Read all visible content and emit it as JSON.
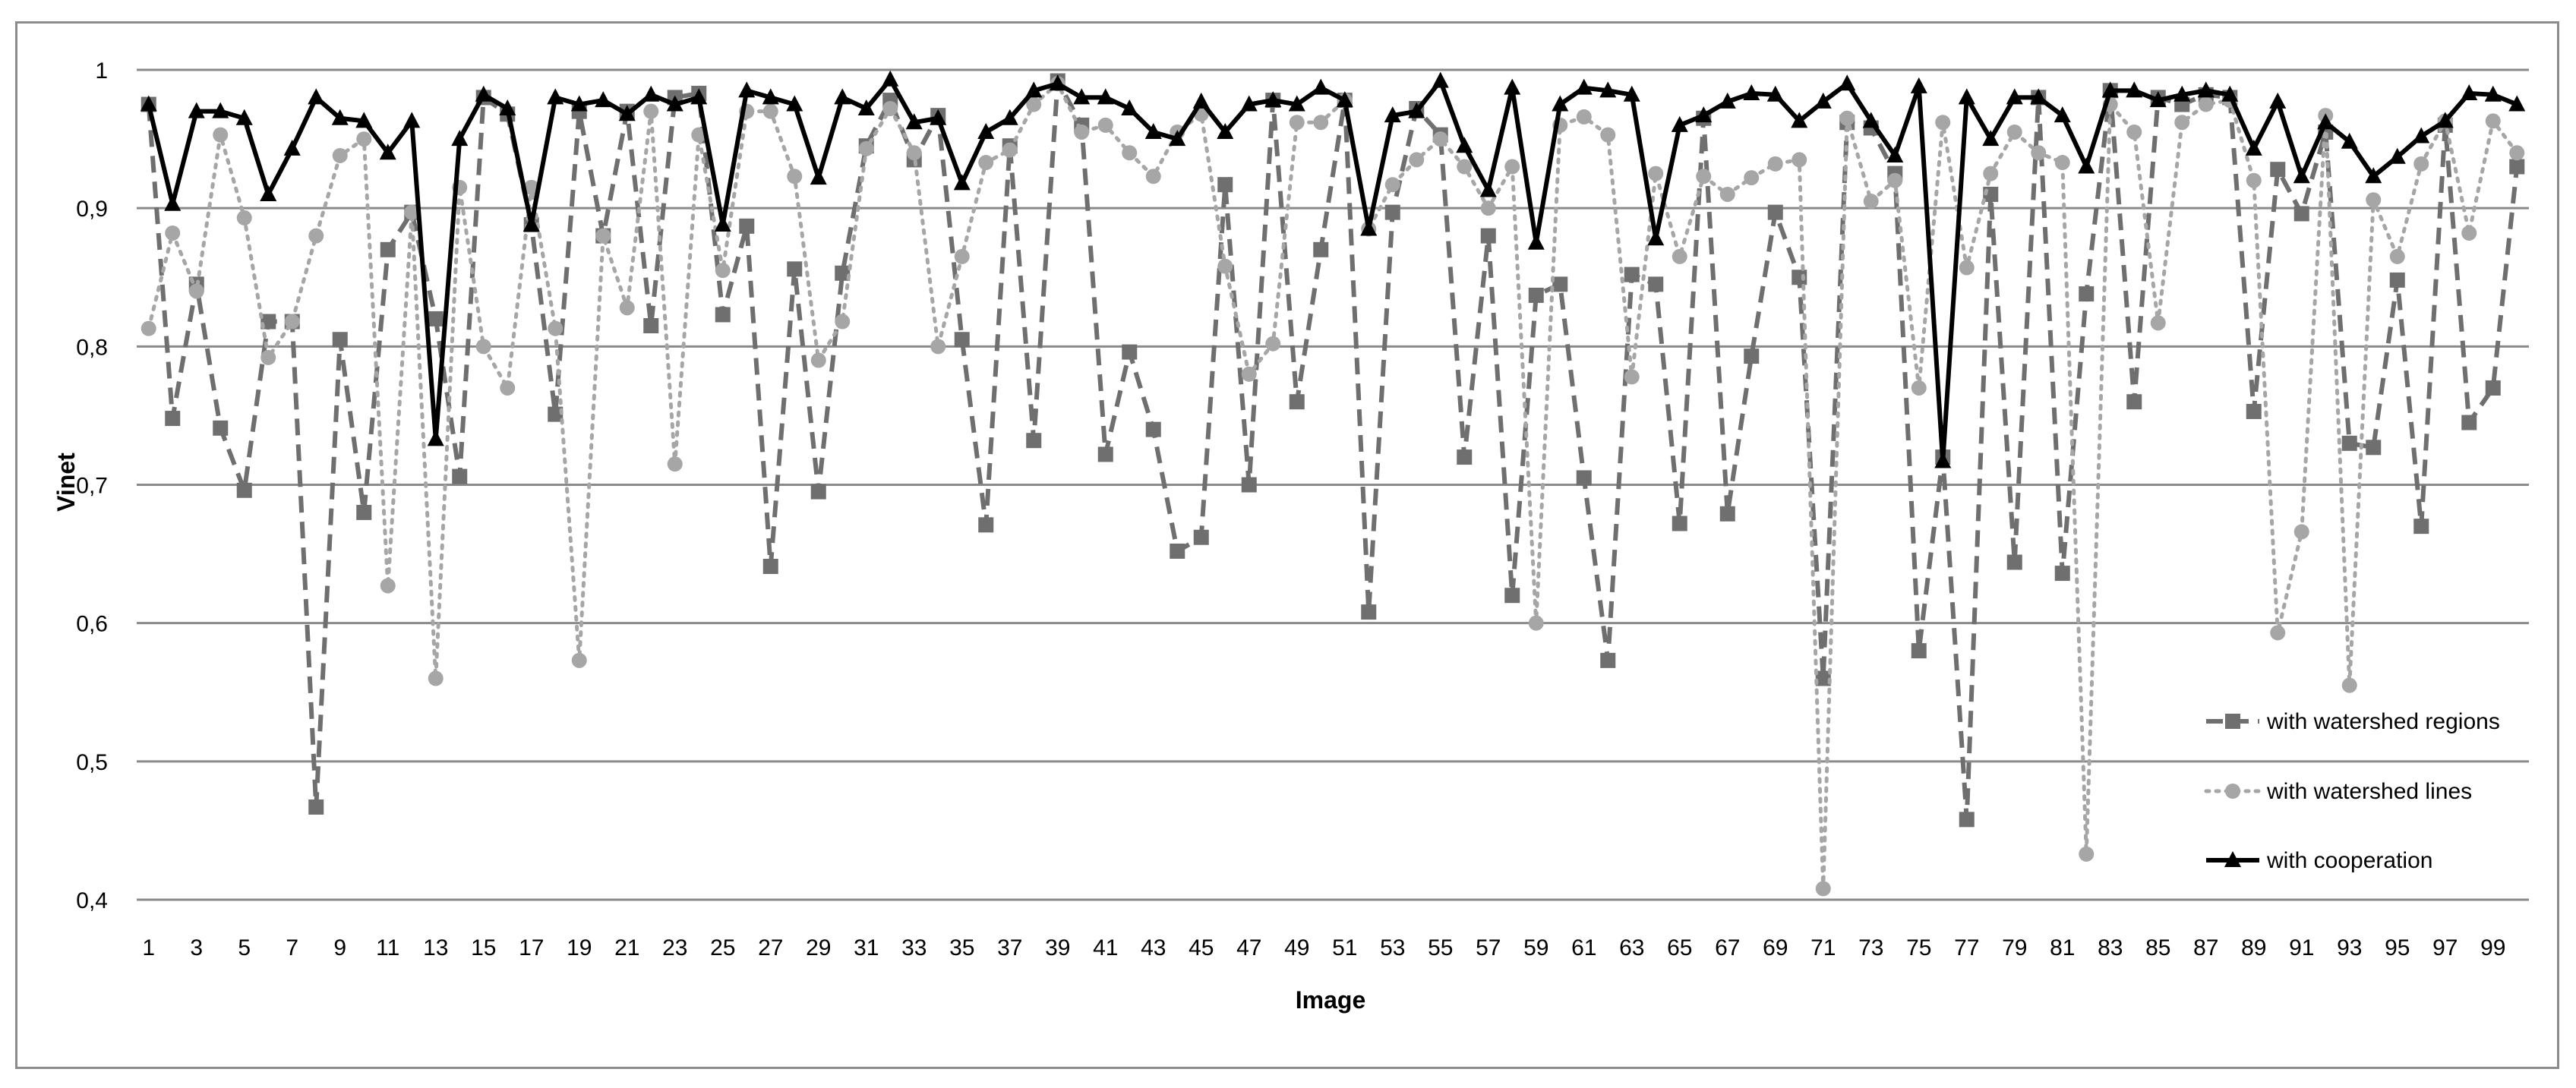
{
  "chart_data": {
    "type": "line",
    "title": "",
    "xlabel": "Image",
    "ylabel": "Vinet",
    "ylim": [
      0.4,
      1.0
    ],
    "xlim": [
      1,
      100
    ],
    "yticks": [
      0.4,
      0.5,
      0.6,
      0.7,
      0.8,
      0.9,
      1.0
    ],
    "ytick_labels": [
      "0,4",
      "0,5",
      "0,6",
      "0,7",
      "0,8",
      "0,9",
      "1"
    ],
    "xticks": [
      1,
      3,
      5,
      7,
      9,
      11,
      13,
      15,
      17,
      19,
      21,
      23,
      25,
      27,
      29,
      31,
      33,
      35,
      37,
      39,
      41,
      43,
      45,
      47,
      49,
      51,
      53,
      55,
      57,
      59,
      61,
      63,
      65,
      67,
      69,
      71,
      73,
      75,
      77,
      79,
      81,
      83,
      85,
      87,
      89,
      91,
      93,
      95,
      97,
      99
    ],
    "xtick_labels": [
      "1",
      "3",
      "5",
      "7",
      "9",
      "11",
      "13",
      "15",
      "17",
      "19",
      "21",
      "23",
      "25",
      "27",
      "29",
      "31",
      "33",
      "35",
      "37",
      "39",
      "41",
      "43",
      "45",
      "47",
      "49",
      "51",
      "53",
      "55",
      "57",
      "59",
      "61",
      "63",
      "65",
      "67",
      "69",
      "71",
      "73",
      "75",
      "77",
      "79",
      "81",
      "83",
      "85",
      "87",
      "89",
      "91",
      "93",
      "95",
      "97",
      "99"
    ],
    "grid": "horizontal",
    "legend_position": "bottom-right",
    "x": [
      1,
      2,
      3,
      4,
      5,
      6,
      7,
      8,
      9,
      10,
      11,
      12,
      13,
      14,
      15,
      16,
      17,
      18,
      19,
      20,
      21,
      22,
      23,
      24,
      25,
      26,
      27,
      28,
      29,
      30,
      31,
      32,
      33,
      34,
      35,
      36,
      37,
      38,
      39,
      40,
      41,
      42,
      43,
      44,
      45,
      46,
      47,
      48,
      49,
      50,
      51,
      52,
      53,
      54,
      55,
      56,
      57,
      58,
      59,
      60,
      61,
      62,
      63,
      64,
      65,
      66,
      67,
      68,
      69,
      70,
      71,
      72,
      73,
      74,
      75,
      76,
      77,
      78,
      79,
      80,
      81,
      82,
      83,
      84,
      85,
      86,
      87,
      88,
      89,
      90,
      91,
      92,
      93,
      94,
      95,
      96,
      97,
      98,
      99,
      100
    ],
    "series": [
      {
        "name": "with watershed regions",
        "style": "dashed-square",
        "color": "#6f6f6f",
        "values": [
          0.975,
          0.748,
          0.845,
          0.741,
          0.696,
          0.818,
          0.818,
          0.467,
          0.805,
          0.68,
          0.87,
          0.897,
          0.82,
          0.706,
          0.98,
          0.968,
          0.888,
          0.751,
          0.97,
          0.88,
          0.97,
          0.815,
          0.98,
          0.983,
          0.823,
          0.887,
          0.641,
          0.856,
          0.695,
          0.853,
          0.945,
          0.978,
          0.935,
          0.967,
          0.805,
          0.671,
          0.945,
          0.732,
          0.992,
          0.96,
          0.722,
          0.796,
          0.74,
          0.652,
          0.662,
          0.917,
          0.7,
          0.978,
          0.76,
          0.87,
          0.978,
          0.608,
          0.897,
          0.972,
          0.953,
          0.72,
          0.88,
          0.62,
          0.837,
          0.845,
          0.705,
          0.573,
          0.852,
          0.845,
          0.672,
          0.965,
          0.679,
          0.793,
          0.897,
          0.85,
          0.56,
          0.962,
          0.958,
          0.925,
          0.58,
          0.72,
          0.458,
          0.91,
          0.644,
          0.98,
          0.636,
          0.838,
          0.985,
          0.76,
          0.98,
          0.975,
          0.982,
          0.98,
          0.753,
          0.928,
          0.896,
          0.955,
          0.73,
          0.727,
          0.848,
          0.67,
          0.96,
          0.745,
          0.77,
          0.93
        ]
      },
      {
        "name": "with watershed lines",
        "style": "dotted-circle",
        "color": "#a6a6a6",
        "values": [
          0.813,
          0.882,
          0.84,
          0.953,
          0.893,
          0.792,
          0.818,
          0.88,
          0.938,
          0.95,
          0.627,
          0.897,
          0.56,
          0.915,
          0.8,
          0.77,
          0.915,
          0.813,
          0.573,
          0.88,
          0.828,
          0.97,
          0.715,
          0.953,
          0.855,
          0.97,
          0.97,
          0.923,
          0.79,
          0.818,
          0.943,
          0.972,
          0.94,
          0.8,
          0.865,
          0.933,
          0.942,
          0.975,
          0.99,
          0.955,
          0.96,
          0.94,
          0.923,
          0.955,
          0.968,
          0.858,
          0.78,
          0.802,
          0.962,
          0.962,
          0.978,
          0.885,
          0.917,
          0.935,
          0.95,
          0.93,
          0.9,
          0.93,
          0.6,
          0.96,
          0.966,
          0.953,
          0.778,
          0.925,
          0.865,
          0.923,
          0.91,
          0.922,
          0.932,
          0.935,
          0.408,
          0.965,
          0.905,
          0.92,
          0.77,
          0.962,
          0.857,
          0.925,
          0.955,
          0.94,
          0.933,
          0.433,
          0.975,
          0.955,
          0.817,
          0.962,
          0.975,
          0.978,
          0.92,
          0.593,
          0.666,
          0.967,
          0.555,
          0.906,
          0.865,
          0.932,
          0.963,
          0.882,
          0.963,
          0.94
        ]
      },
      {
        "name": "with cooperation",
        "style": "solid-triangle",
        "color": "#000000",
        "values": [
          0.975,
          0.903,
          0.97,
          0.97,
          0.965,
          0.91,
          0.943,
          0.98,
          0.965,
          0.963,
          0.94,
          0.963,
          0.733,
          0.95,
          0.982,
          0.972,
          0.888,
          0.98,
          0.975,
          0.978,
          0.968,
          0.982,
          0.975,
          0.98,
          0.888,
          0.985,
          0.98,
          0.975,
          0.922,
          0.98,
          0.972,
          0.993,
          0.962,
          0.965,
          0.918,
          0.955,
          0.965,
          0.985,
          0.99,
          0.98,
          0.98,
          0.972,
          0.955,
          0.95,
          0.977,
          0.955,
          0.975,
          0.978,
          0.975,
          0.987,
          0.978,
          0.885,
          0.967,
          0.97,
          0.992,
          0.945,
          0.913,
          0.987,
          0.875,
          0.975,
          0.987,
          0.985,
          0.982,
          0.878,
          0.96,
          0.967,
          0.977,
          0.983,
          0.982,
          0.963,
          0.977,
          0.99,
          0.963,
          0.938,
          0.988,
          0.717,
          0.98,
          0.95,
          0.98,
          0.98,
          0.967,
          0.93,
          0.985,
          0.985,
          0.978,
          0.982,
          0.985,
          0.982,
          0.943,
          0.977,
          0.923,
          0.962,
          0.948,
          0.923,
          0.937,
          0.952,
          0.963,
          0.983,
          0.982,
          0.975
        ]
      }
    ]
  }
}
